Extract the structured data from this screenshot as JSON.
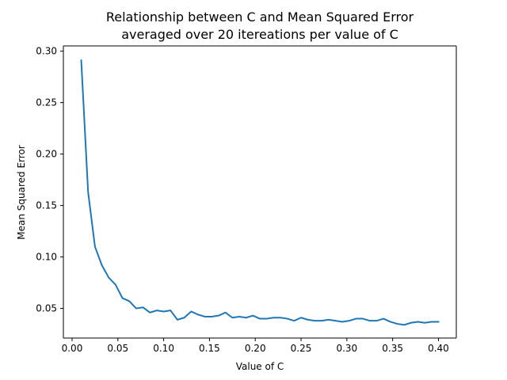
{
  "chart_data": {
    "type": "line",
    "title_line1": "Relationship between C and Mean Squared Error",
    "title_line2": "averaged over 20 itereations per value of C",
    "xlabel": "Value of C",
    "ylabel": "Mean Squared Error",
    "xlim": [
      -0.0095,
      0.4195
    ],
    "ylim": [
      0.0212,
      0.3051
    ],
    "xticks": [
      0.0,
      0.05,
      0.1,
      0.15,
      0.2,
      0.25,
      0.3,
      0.35,
      0.4
    ],
    "xtick_labels": [
      "0.00",
      "0.05",
      "0.10",
      "0.15",
      "0.20",
      "0.25",
      "0.30",
      "0.35",
      "0.40"
    ],
    "yticks": [
      0.05,
      0.1,
      0.15,
      0.2,
      0.25,
      0.3
    ],
    "ytick_labels": [
      "0.05",
      "0.10",
      "0.15",
      "0.20",
      "0.25",
      "0.30"
    ],
    "grid": false,
    "series": [
      {
        "color": "#1f77b4",
        "x": [
          0.01,
          0.0175,
          0.025,
          0.0325,
          0.04,
          0.0475,
          0.055,
          0.0625,
          0.07,
          0.0775,
          0.085,
          0.0925,
          0.1,
          0.1075,
          0.115,
          0.1225,
          0.13,
          0.1375,
          0.145,
          0.1525,
          0.16,
          0.1675,
          0.175,
          0.1825,
          0.19,
          0.1975,
          0.205,
          0.2125,
          0.22,
          0.2275,
          0.235,
          0.2425,
          0.25,
          0.2575,
          0.265,
          0.2725,
          0.28,
          0.2875,
          0.295,
          0.3025,
          0.31,
          0.3175,
          0.325,
          0.3325,
          0.34,
          0.3475,
          0.355,
          0.3625,
          0.37,
          0.3775,
          0.385,
          0.3925,
          0.4
        ],
        "y": [
          0.291,
          0.163,
          0.11,
          0.092,
          0.08,
          0.073,
          0.06,
          0.057,
          0.05,
          0.051,
          0.046,
          0.048,
          0.047,
          0.048,
          0.039,
          0.041,
          0.047,
          0.044,
          0.042,
          0.042,
          0.043,
          0.046,
          0.041,
          0.042,
          0.041,
          0.043,
          0.04,
          0.04,
          0.041,
          0.041,
          0.04,
          0.038,
          0.041,
          0.039,
          0.038,
          0.038,
          0.039,
          0.038,
          0.037,
          0.038,
          0.04,
          0.04,
          0.038,
          0.038,
          0.04,
          0.037,
          0.035,
          0.034,
          0.036,
          0.037,
          0.036,
          0.037,
          0.037
        ]
      }
    ]
  }
}
